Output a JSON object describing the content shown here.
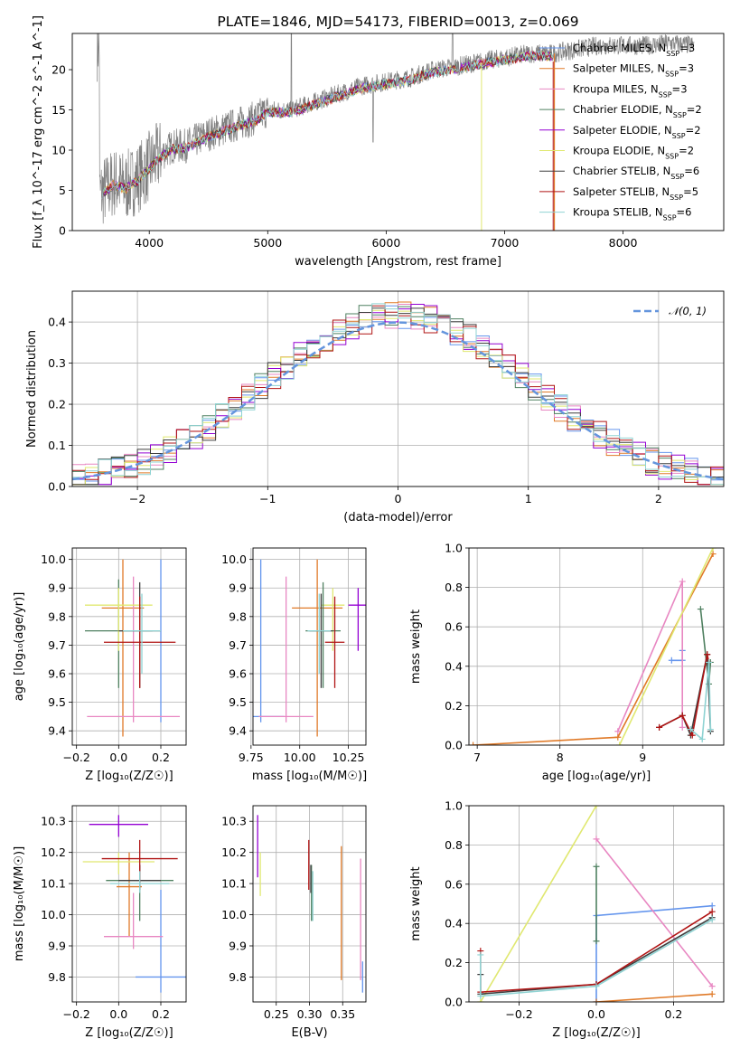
{
  "palette": [
    "#6495ed",
    "#e07a28",
    "#e887c2",
    "#4f8060",
    "#9400d3",
    "#e0e870",
    "#3f3f3f",
    "#b01414",
    "#8fd3d3"
  ],
  "chart_data": [
    {
      "id": "spectrum",
      "type": "line",
      "title": "PLATE=1846, MJD=54173, FIBERID=0013, z=0.069",
      "xlabel": "wavelength [Angstrom, rest frame]",
      "ylabel": "Flux [f_λ 10^-17 erg cm^-2 s^-1 A^-1]",
      "xlim": [
        3350,
        8850
      ],
      "ylim": [
        0,
        24.5
      ],
      "xticks": [
        4000,
        5000,
        6000,
        7000,
        8000
      ],
      "yticks": [
        0,
        5,
        10,
        15,
        20
      ],
      "grid": false,
      "legend_position": "right",
      "legend": [
        {
          "name": "Chabrier MILES",
          "nssp": "3"
        },
        {
          "name": "Salpeter MILES",
          "nssp": "3"
        },
        {
          "name": "Kroupa MILES",
          "nssp": "3"
        },
        {
          "name": "Chabrier ELODIE",
          "nssp": "2"
        },
        {
          "name": "Salpeter ELODIE",
          "nssp": "2"
        },
        {
          "name": "Kroupa ELODIE",
          "nssp": "2"
        },
        {
          "name": "Chabrier STELIB",
          "nssp": "6"
        },
        {
          "name": "Salpeter STELIB",
          "nssp": "5"
        },
        {
          "name": "Kroupa STELIB",
          "nssp": "6"
        }
      ],
      "continuum": [
        [
          3580,
          4.5
        ],
        [
          3700,
          6
        ],
        [
          3800,
          5.5
        ],
        [
          3900,
          6.5
        ],
        [
          4000,
          8
        ],
        [
          4100,
          9.5
        ],
        [
          4200,
          10.5
        ],
        [
          4300,
          10.5
        ],
        [
          4500,
          12
        ],
        [
          4700,
          13
        ],
        [
          4900,
          14
        ],
        [
          5000,
          15
        ],
        [
          5200,
          15
        ],
        [
          5400,
          16
        ],
        [
          5600,
          17
        ],
        [
          5800,
          18
        ],
        [
          6000,
          18.5
        ],
        [
          6200,
          19
        ],
        [
          6400,
          20
        ],
        [
          6560,
          20.3
        ],
        [
          6800,
          21
        ],
        [
          7000,
          21.5
        ],
        [
          7200,
          22
        ],
        [
          7400,
          22
        ],
        [
          7600,
          22.5
        ],
        [
          7800,
          23
        ],
        [
          8000,
          23
        ],
        [
          8200,
          23
        ],
        [
          8400,
          23.3
        ],
        [
          8600,
          23
        ]
      ]
    },
    {
      "id": "residuals",
      "type": "histogram",
      "xlabel": "(data-model)/error",
      "ylabel": "Normed distribution",
      "xlim": [
        -2.5,
        2.5
      ],
      "ylim": [
        0,
        0.475
      ],
      "xticks": [
        -2,
        -1,
        0,
        1,
        2
      ],
      "yticks": [
        0.0,
        0.1,
        0.2,
        0.3,
        0.4
      ],
      "grid": true,
      "legend_position": "top-right",
      "normal_label": "𝒩(0, 1)",
      "bin_width": 0.1
    },
    {
      "id": "age-vs-Z",
      "type": "errorbar",
      "xlabel": "Z [log₁₀(Z/Z☉)]",
      "ylabel": "age  [log₁₀(age/yr)]",
      "xlim": [
        -0.22,
        0.32
      ],
      "ylim": [
        9.35,
        10.04
      ],
      "xticks": [
        -0.2,
        0.0,
        0.2
      ],
      "yticks": [
        9.4,
        9.5,
        9.6,
        9.7,
        9.8,
        9.9,
        10.0
      ],
      "grid": true,
      "points": [
        {
          "x": 0.2,
          "y": 9.72,
          "xerr": 0.0,
          "ylo": 9.43,
          "yhi": 10.0,
          "c": 0
        },
        {
          "x": 0.02,
          "y": 9.83,
          "xerr": 0.1,
          "ylo": 9.38,
          "yhi": 10.0,
          "c": 1
        },
        {
          "x": 0.07,
          "y": 9.45,
          "xerr": 0.22,
          "ylo": 9.43,
          "yhi": 9.94,
          "c": 2
        },
        {
          "x": 0.0,
          "y": 9.75,
          "xerr": 0.16,
          "ylo": 9.55,
          "yhi": 9.93,
          "c": 3
        },
        {
          "x": 0.0,
          "y": 9.84,
          "xerr": 0.16,
          "ylo": 9.68,
          "yhi": 9.9,
          "c": 5
        },
        {
          "x": 0.1,
          "y": 9.75,
          "xerr": 0.1,
          "ylo": 9.55,
          "yhi": 9.92,
          "c": 6
        },
        {
          "x": 0.1,
          "y": 9.71,
          "xerr": 0.17,
          "ylo": 9.55,
          "yhi": 9.87,
          "c": 7
        },
        {
          "x": 0.11,
          "y": 9.75,
          "xerr": 0.09,
          "ylo": 9.6,
          "yhi": 9.88,
          "c": 8
        }
      ]
    },
    {
      "id": "age-vs-mass",
      "type": "errorbar",
      "xlabel": "mass [log₁₀(M/M☉)]",
      "ylabel": "",
      "xlim": [
        9.76,
        10.34
      ],
      "ylim": [
        9.35,
        10.04
      ],
      "xticks": [
        9.75,
        10.0,
        10.25
      ],
      "yticks": [
        9.4,
        9.5,
        9.6,
        9.7,
        9.8,
        9.9,
        10.0
      ],
      "grid": true,
      "points": [
        {
          "x": 9.8,
          "y": 9.45,
          "xerr": 0.12,
          "ylo": 9.43,
          "yhi": 10.0,
          "c": 0
        },
        {
          "x": 10.09,
          "y": 9.83,
          "xerr": 0.13,
          "ylo": 9.38,
          "yhi": 10.0,
          "c": 1
        },
        {
          "x": 9.93,
          "y": 9.45,
          "xerr": 0.14,
          "ylo": 9.43,
          "yhi": 9.94,
          "c": 2
        },
        {
          "x": 10.3,
          "y": 9.84,
          "xerr": 0.05,
          "ylo": 9.68,
          "yhi": 9.9,
          "c": 4
        },
        {
          "x": 10.17,
          "y": 9.84,
          "xerr": 0.06,
          "ylo": 9.68,
          "yhi": 9.9,
          "c": 5
        },
        {
          "x": 10.12,
          "y": 9.75,
          "xerr": 0.09,
          "ylo": 9.55,
          "yhi": 9.92,
          "c": 3
        },
        {
          "x": 10.11,
          "y": 9.75,
          "xerr": 0.06,
          "ylo": 9.55,
          "yhi": 9.88,
          "c": 6
        },
        {
          "x": 10.18,
          "y": 9.71,
          "xerr": 0.05,
          "ylo": 9.55,
          "yhi": 9.87,
          "c": 7
        },
        {
          "x": 10.1,
          "y": 9.75,
          "xerr": 0.06,
          "ylo": 9.6,
          "yhi": 9.88,
          "c": 8
        }
      ]
    },
    {
      "id": "weight-vs-age",
      "type": "line",
      "xlabel": "age  [log₁₀(age/yr)]",
      "ylabel": "mass weight",
      "xlim": [
        6.9,
        9.98
      ],
      "ylim": [
        0,
        1.0
      ],
      "xticks": [
        7,
        8,
        9
      ],
      "yticks": [
        0.0,
        0.2,
        0.4,
        0.6,
        0.8,
        1.0
      ],
      "grid": true,
      "series": [
        {
          "c": 0,
          "points": [
            [
              9.35,
              0.43
            ],
            [
              9.48,
              0.43
            ],
            [
              9.48,
              0.48
            ]
          ]
        },
        {
          "c": 1,
          "points": [
            [
              6.95,
              0.0
            ],
            [
              8.7,
              0.04
            ],
            [
              9.85,
              0.97
            ]
          ]
        },
        {
          "c": 2,
          "points": [
            [
              8.7,
              0.07
            ],
            [
              9.48,
              0.83
            ],
            [
              9.48,
              0.09
            ]
          ]
        },
        {
          "c": 3,
          "points": [
            [
              9.7,
              0.69
            ],
            [
              9.8,
              0.31
            ],
            [
              9.82,
              0.42
            ]
          ]
        },
        {
          "c": 5,
          "points": [
            [
              8.72,
              0.0
            ],
            [
              9.85,
              1.0
            ]
          ]
        },
        {
          "c": 6,
          "points": [
            [
              9.2,
              0.09
            ],
            [
              9.48,
              0.15
            ],
            [
              9.58,
              0.05
            ],
            [
              9.78,
              0.46
            ],
            [
              9.82,
              0.07
            ]
          ]
        },
        {
          "c": 7,
          "points": [
            [
              9.2,
              0.09
            ],
            [
              9.48,
              0.15
            ],
            [
              9.6,
              0.05
            ],
            [
              9.78,
              0.46
            ],
            [
              9.8,
              0.42
            ]
          ]
        },
        {
          "c": 8,
          "points": [
            [
              9.58,
              0.08
            ],
            [
              9.72,
              0.03
            ],
            [
              9.8,
              0.42
            ],
            [
              9.82,
              0.08
            ]
          ]
        }
      ]
    },
    {
      "id": "mass-vs-Z",
      "type": "errorbar",
      "xlabel": "Z [log₁₀(Z/Z☉)]",
      "ylabel": "mass [log₁₀(M/M☉)]",
      "xlim": [
        -0.22,
        0.32
      ],
      "ylim": [
        9.72,
        10.35
      ],
      "xticks": [
        -0.2,
        0.0,
        0.2
      ],
      "yticks": [
        9.8,
        9.9,
        10.0,
        10.1,
        10.2,
        10.3
      ],
      "grid": true,
      "points": [
        {
          "x": 0.2,
          "y": 9.8,
          "xerr": 0.12,
          "ylo": 9.75,
          "yhi": 10.08,
          "c": 0
        },
        {
          "x": 0.05,
          "y": 10.09,
          "xerr": 0.06,
          "ylo": 9.93,
          "yhi": 10.2,
          "c": 1
        },
        {
          "x": 0.07,
          "y": 9.93,
          "xerr": 0.14,
          "ylo": 9.89,
          "yhi": 10.07,
          "c": 2
        },
        {
          "x": 0.0,
          "y": 10.29,
          "xerr": 0.14,
          "ylo": 10.25,
          "yhi": 10.32,
          "c": 4
        },
        {
          "x": 0.0,
          "y": 10.17,
          "xerr": 0.17,
          "ylo": 10.13,
          "yhi": 10.2,
          "c": 5
        },
        {
          "x": 0.1,
          "y": 10.11,
          "xerr": 0.16,
          "ylo": 9.98,
          "yhi": 10.16,
          "c": 3
        },
        {
          "x": 0.1,
          "y": 10.11,
          "xerr": 0.1,
          "ylo": 10.08,
          "yhi": 10.16,
          "c": 6
        },
        {
          "x": 0.1,
          "y": 10.18,
          "xerr": 0.18,
          "ylo": 10.1,
          "yhi": 10.24,
          "c": 7
        },
        {
          "x": 0.1,
          "y": 10.1,
          "xerr": 0.14,
          "ylo": 10.07,
          "yhi": 10.14,
          "c": 8
        }
      ]
    },
    {
      "id": "mass-vs-ebv",
      "type": "errorbar",
      "xlabel": "E(B-V)",
      "ylabel": "",
      "xlim": [
        0.215,
        0.385
      ],
      "ylim": [
        9.72,
        10.35
      ],
      "xticks": [
        0.25,
        0.3,
        0.35
      ],
      "yticks": [
        9.8,
        9.9,
        10.0,
        10.1,
        10.2,
        10.3
      ],
      "grid": true,
      "points": [
        {
          "x": 0.38,
          "y": 9.8,
          "xerr": 0,
          "ylo": 9.75,
          "yhi": 9.85,
          "c": 0
        },
        {
          "x": 0.348,
          "y": 10.09,
          "xerr": 0,
          "ylo": 9.79,
          "yhi": 10.22,
          "c": 1
        },
        {
          "x": 0.377,
          "y": 9.93,
          "xerr": 0,
          "ylo": 9.79,
          "yhi": 10.18,
          "c": 2
        },
        {
          "x": 0.222,
          "y": 10.29,
          "xerr": 0,
          "ylo": 10.12,
          "yhi": 10.32,
          "c": 4
        },
        {
          "x": 0.226,
          "y": 10.17,
          "xerr": 0,
          "ylo": 10.06,
          "yhi": 10.2,
          "c": 5
        },
        {
          "x": 0.303,
          "y": 10.11,
          "xerr": 0,
          "ylo": 9.98,
          "yhi": 10.16,
          "c": 3
        },
        {
          "x": 0.302,
          "y": 10.11,
          "xerr": 0,
          "ylo": 10.07,
          "yhi": 10.16,
          "c": 6
        },
        {
          "x": 0.299,
          "y": 10.18,
          "xerr": 0,
          "ylo": 10.08,
          "yhi": 10.24,
          "c": 7
        },
        {
          "x": 0.305,
          "y": 10.1,
          "xerr": 0,
          "ylo": 9.98,
          "yhi": 10.14,
          "c": 8
        }
      ]
    },
    {
      "id": "weight-vs-Z",
      "type": "line",
      "xlabel": "Z [log₁₀(Z/Z☉)]",
      "ylabel": "mass weight",
      "xlim": [
        -0.33,
        0.33
      ],
      "ylim": [
        0,
        1.0
      ],
      "xticks": [
        -0.2,
        0.0,
        0.2
      ],
      "yticks": [
        0.0,
        0.2,
        0.4,
        0.6,
        0.8,
        1.0
      ],
      "grid": true,
      "series": [
        {
          "c": 0,
          "points": [
            [
              0.0,
              0.0
            ],
            [
              0.0,
              0.44
            ],
            [
              0.3,
              0.49
            ]
          ]
        },
        {
          "c": 1,
          "points": [
            [
              0.0,
              0.0
            ],
            [
              0.3,
              0.04
            ]
          ]
        },
        {
          "c": 2,
          "points": [
            [
              0.0,
              0.83
            ],
            [
              0.3,
              0.08
            ]
          ]
        },
        {
          "c": 3,
          "points": [
            [
              0.0,
              0.31
            ],
            [
              0.0,
              0.69
            ]
          ]
        },
        {
          "c": 5,
          "points": [
            [
              -0.3,
              0.0
            ],
            [
              0.0,
              1.0
            ]
          ]
        },
        {
          "c": 6,
          "points": [
            [
              -0.3,
              0.14
            ],
            [
              -0.3,
              0.04
            ],
            [
              0.0,
              0.09
            ],
            [
              0.3,
              0.43
            ]
          ]
        },
        {
          "c": 7,
          "points": [
            [
              -0.3,
              0.26
            ],
            [
              -0.3,
              0.05
            ],
            [
              0.0,
              0.09
            ],
            [
              0.3,
              0.46
            ]
          ]
        },
        {
          "c": 8,
          "points": [
            [
              -0.3,
              0.24
            ],
            [
              -0.3,
              0.03
            ],
            [
              0.0,
              0.08
            ],
            [
              0.3,
              0.42
            ]
          ]
        }
      ]
    }
  ]
}
